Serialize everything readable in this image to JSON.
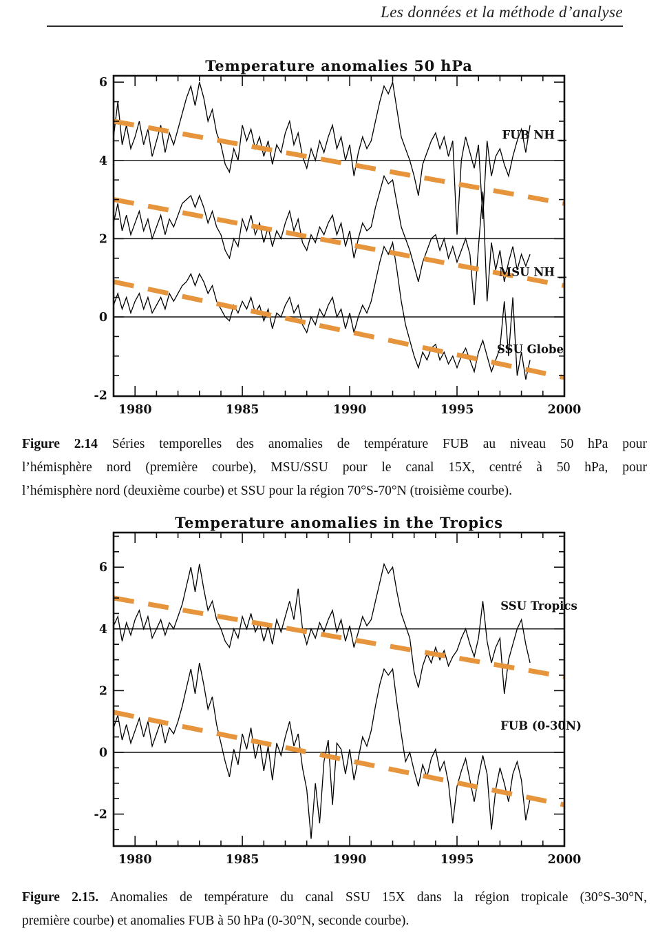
{
  "header": {
    "title": "Les données et la méthode d’analyse"
  },
  "figures": [
    {
      "label": "Figure 2.14",
      "lines": [
        "Séries temporelles des anomalies de température FUB au niveau 50 hPa pour",
        "l’hémisphère nord (première courbe), MSU/SSU pour le canal 15X, centré à 50 hPa,  pour",
        "l’hémisphère nord (deuxième courbe) et  SSU pour la région 70°S-70°N (troisième courbe)."
      ]
    },
    {
      "label": "Figure 2.15.",
      "lines": [
        "Anomalies de température du canal SSU 15X dans la région tropicale (30°S-30°N,",
        "première courbe) et anomalies FUB à 50 hPa (0-30°N, seconde courbe)."
      ]
    }
  ],
  "colors": {
    "trend_line": "#E6953C",
    "curve": "#000000",
    "axis": "#111111"
  },
  "chart_data": [
    {
      "type": "line",
      "title": "Temperature anomalies 50 hPa",
      "xlabel": "",
      "ylabel": "",
      "xlim": [
        1979,
        2000
      ],
      "ylim": [
        -2,
        6.2
      ],
      "grid": false,
      "x_ticks_major": [
        1980,
        1985,
        1990,
        1995,
        2000
      ],
      "y_ticks_major": [
        -2,
        0,
        2,
        4,
        6
      ],
      "reference_lines": [
        4,
        2,
        0
      ],
      "x_start": 1979.0,
      "x_step": 0.2,
      "series": [
        {
          "name": "FUB NH",
          "values": [
            4.6,
            5.5,
            4.4,
            4.9,
            4.3,
            4.6,
            5.0,
            4.4,
            4.8,
            4.1,
            4.5,
            4.9,
            4.2,
            4.7,
            4.4,
            4.8,
            5.2,
            5.6,
            5.9,
            5.4,
            6.0,
            5.6,
            5.0,
            5.3,
            4.7,
            4.4,
            3.9,
            3.7,
            4.3,
            4.0,
            4.9,
            4.5,
            4.8,
            4.3,
            4.6,
            4.1,
            4.5,
            3.9,
            4.4,
            4.2,
            4.7,
            5.0,
            4.4,
            4.7,
            4.1,
            3.8,
            4.3,
            4.0,
            4.5,
            4.2,
            4.6,
            4.9,
            4.3,
            4.6,
            4.0,
            4.4,
            3.6,
            4.2,
            4.6,
            4.3,
            4.5,
            5.0,
            5.5,
            5.9,
            5.7,
            6.0,
            5.3,
            4.6,
            4.3,
            4.0,
            3.6,
            3.1,
            3.9,
            4.2,
            4.5,
            4.7,
            4.3,
            4.6,
            4.1,
            4.5,
            2.1,
            4.0,
            4.6,
            4.2,
            3.8,
            4.4,
            2.5,
            4.5,
            3.6,
            4.1,
            4.3,
            3.9,
            3.6,
            4.1,
            4.5,
            4.8,
            4.2,
            4.9
          ]
        },
        {
          "name": "MSU NH",
          "values": [
            2.4,
            2.9,
            2.2,
            2.6,
            2.1,
            2.4,
            2.7,
            2.2,
            2.5,
            2.0,
            2.3,
            2.6,
            2.1,
            2.5,
            2.3,
            2.6,
            2.9,
            3.0,
            3.1,
            2.8,
            3.1,
            2.8,
            2.4,
            2.7,
            2.3,
            2.1,
            1.7,
            1.5,
            2.0,
            1.8,
            2.5,
            2.2,
            2.6,
            2.1,
            2.4,
            1.9,
            2.3,
            1.8,
            2.2,
            2.0,
            2.4,
            2.7,
            2.2,
            2.5,
            1.9,
            1.7,
            2.1,
            1.9,
            2.3,
            2.1,
            2.4,
            2.6,
            2.1,
            2.4,
            1.8,
            2.2,
            1.5,
            2.0,
            2.4,
            2.2,
            2.3,
            2.8,
            3.2,
            3.6,
            3.4,
            3.5,
            2.9,
            2.3,
            2.0,
            1.7,
            1.3,
            0.9,
            1.4,
            1.7,
            2.0,
            2.1,
            1.7,
            2.0,
            1.5,
            1.8,
            1.4,
            1.7,
            2.0,
            1.6,
            0.3,
            1.8,
            3.2,
            0.4,
            1.9,
            1.2,
            1.7,
            0.9,
            1.4,
            1.8,
            1.2,
            1.6,
            1.3,
            1.6
          ]
        },
        {
          "name": "SSU Globe",
          "values": [
            0.3,
            0.6,
            0.2,
            0.5,
            0.1,
            0.4,
            0.6,
            0.2,
            0.5,
            0.1,
            0.3,
            0.5,
            0.2,
            0.6,
            0.4,
            0.6,
            0.8,
            0.9,
            1.1,
            0.8,
            1.1,
            0.9,
            0.6,
            0.8,
            0.4,
            0.2,
            0.0,
            -0.1,
            0.3,
            0.1,
            0.4,
            0.2,
            0.5,
            0.1,
            0.3,
            -0.1,
            0.2,
            -0.3,
            0.1,
            0.0,
            0.3,
            0.5,
            0.1,
            0.3,
            -0.2,
            -0.4,
            0.0,
            -0.2,
            0.2,
            0.0,
            0.3,
            0.5,
            0.0,
            0.2,
            -0.3,
            0.1,
            -0.4,
            0.0,
            0.3,
            0.1,
            0.4,
            0.9,
            1.4,
            1.8,
            1.6,
            1.9,
            1.2,
            0.4,
            -0.2,
            -0.6,
            -1.0,
            -1.3,
            -0.9,
            -1.1,
            -0.8,
            -0.7,
            -1.1,
            -0.9,
            -1.2,
            -1.0,
            -1.3,
            -1.0,
            -0.8,
            -1.1,
            -1.4,
            -0.9,
            -0.6,
            -1.0,
            -1.4,
            -1.1,
            -0.8,
            0.4,
            -1.0,
            0.5,
            -1.5,
            -0.9,
            -1.6,
            -1.1
          ]
        }
      ],
      "trends": [
        {
          "series": "FUB NH",
          "start": [
            1979,
            5.0
          ],
          "end": [
            2000,
            2.9
          ]
        },
        {
          "series": "MSU NH",
          "start": [
            1979,
            3.0
          ],
          "end": [
            2000,
            0.8
          ]
        },
        {
          "series": "SSU Globe",
          "start": [
            1979,
            0.9
          ],
          "end": [
            2000,
            -1.55
          ]
        }
      ]
    },
    {
      "type": "line",
      "title": "Temperature anomalies in the Tropics",
      "xlabel": "",
      "ylabel": "",
      "xlim": [
        1979,
        2000
      ],
      "ylim": [
        -3,
        7.1
      ],
      "grid": false,
      "x_ticks_major": [
        1980,
        1985,
        1990,
        1995,
        2000
      ],
      "y_ticks_major": [
        -2,
        0,
        2,
        4,
        6
      ],
      "reference_lines": [
        4,
        0
      ],
      "x_start": 1979.0,
      "x_step": 0.2,
      "series": [
        {
          "name": "SSU Tropics",
          "values": [
            4.1,
            4.4,
            3.6,
            4.2,
            3.8,
            4.3,
            4.6,
            4.0,
            4.4,
            3.7,
            4.0,
            4.3,
            3.8,
            4.2,
            4.0,
            4.4,
            4.8,
            5.4,
            6.0,
            5.2,
            6.1,
            5.3,
            4.6,
            4.9,
            4.3,
            4.0,
            3.6,
            3.4,
            4.0,
            3.7,
            4.4,
            4.0,
            4.5,
            3.9,
            4.2,
            3.6,
            4.1,
            3.5,
            4.3,
            3.9,
            4.4,
            4.9,
            4.3,
            5.3,
            4.0,
            3.5,
            4.0,
            3.7,
            4.2,
            3.9,
            4.3,
            4.6,
            3.9,
            4.3,
            3.6,
            4.1,
            3.4,
            3.9,
            4.4,
            4.1,
            4.3,
            4.9,
            5.5,
            6.1,
            5.8,
            6.0,
            5.2,
            4.5,
            4.1,
            3.7,
            2.6,
            2.1,
            2.8,
            3.2,
            2.9,
            3.4,
            3.0,
            3.3,
            2.8,
            3.1,
            3.3,
            3.7,
            4.0,
            3.5,
            3.1,
            3.7,
            4.9,
            3.6,
            2.9,
            3.4,
            3.7,
            1.9,
            3.0,
            3.5,
            4.0,
            4.3,
            3.5,
            2.9
          ]
        },
        {
          "name": "FUB (0-30N)",
          "values": [
            0.8,
            1.2,
            0.4,
            0.9,
            0.3,
            0.7,
            1.1,
            0.5,
            1.0,
            0.2,
            0.6,
            1.0,
            0.3,
            0.8,
            0.6,
            1.0,
            1.5,
            2.1,
            2.7,
            1.9,
            2.9,
            2.2,
            1.4,
            1.8,
            0.9,
            0.3,
            -0.3,
            -0.8,
            0.1,
            -0.4,
            0.6,
            0.1,
            0.8,
            -0.2,
            0.4,
            -0.6,
            0.2,
            -0.9,
            0.3,
            -0.1,
            0.5,
            1.0,
            0.2,
            0.6,
            -0.5,
            -1.2,
            -2.8,
            -1.0,
            -2.3,
            -0.3,
            0.4,
            -1.7,
            0.3,
            0.1,
            -0.7,
            0.1,
            -0.9,
            -0.2,
            0.5,
            0.2,
            0.7,
            1.5,
            2.2,
            2.7,
            2.5,
            2.7,
            1.6,
            0.6,
            -0.3,
            0.0,
            -0.6,
            -1.1,
            -0.4,
            -0.8,
            -0.2,
            0.1,
            -0.6,
            -0.3,
            -1.0,
            -2.3,
            -1.1,
            -0.6,
            -0.2,
            -0.9,
            -1.6,
            -0.8,
            -0.1,
            -0.7,
            -2.5,
            -1.2,
            -0.5,
            -1.0,
            -1.6,
            -0.7,
            -0.3,
            -0.9,
            -2.2,
            -1.5
          ]
        }
      ],
      "trends": [
        {
          "series": "SSU Tropics",
          "start": [
            1979,
            5.0
          ],
          "end": [
            2000,
            2.45
          ]
        },
        {
          "series": "FUB (0-30N)",
          "start": [
            1979,
            1.3
          ],
          "end": [
            2000,
            -1.7
          ]
        }
      ]
    }
  ]
}
